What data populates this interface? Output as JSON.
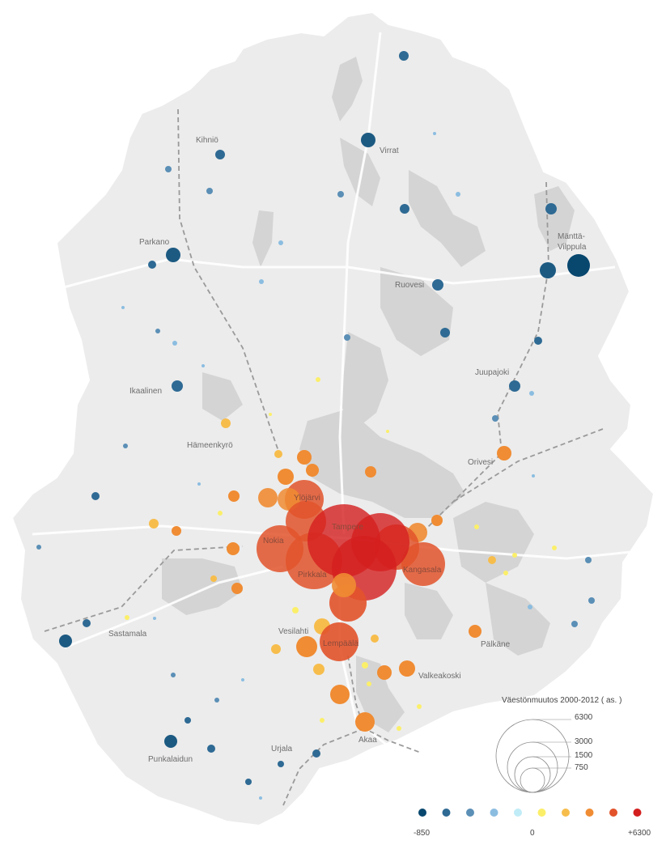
{
  "places": {
    "kihnio": "Kihniö",
    "virrat": "Virrat",
    "parkano": "Parkano",
    "mantta_1": "Mänttä-",
    "mantta_2": "Vilppula",
    "ruovesi": "Ruovesi",
    "juupajoki": "Juupajoki",
    "ikaalinen": "Ikaalinen",
    "hameenkyro": "Hämeenkyrö",
    "orivesi": "Orivesi",
    "ylojarvi": "Ylöjärvi",
    "tampere": "Tampere",
    "nokia": "Nokia",
    "pirkkala": "Pirkkala",
    "kangasala": "Kangasala",
    "sastamala": "Sastamala",
    "vesilahti": "Vesilahti",
    "lempaala": "Lempäälä",
    "palkane": "Pälkäne",
    "valkeakoski": "Valkeakoski",
    "punkalaidun": "Punkalaidun",
    "urjala": "Urjala",
    "akaa": "Akaa"
  },
  "legend": {
    "title": "Väestönmuutos 2000-2012 ( as. )",
    "size_values": [
      "6300",
      "3000",
      "1500",
      "750"
    ],
    "color_min": "-850",
    "color_mid": "0",
    "color_max": "+6300",
    "color_scale": [
      "#08476e",
      "#2e6a94",
      "#5b8fb6",
      "#8bbde0",
      "#c0ecf7",
      "#fbef6a",
      "#f7bd4c",
      "#f08c33",
      "#e2532b",
      "#d41f1f"
    ]
  },
  "map_colors": {
    "land": "#ececec",
    "lakes": "#d4d4d4",
    "roads": "#ffffff",
    "railway": "#9a9a9a"
  }
}
